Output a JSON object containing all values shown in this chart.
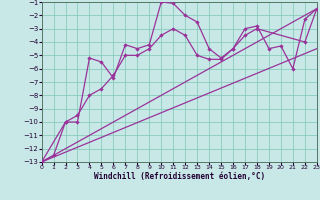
{
  "xlabel": "Windchill (Refroidissement éolien,°C)",
  "background_color": "#c8e8e8",
  "grid_color": "#88ccbb",
  "line_color": "#993399",
  "xlim": [
    0,
    23
  ],
  "ylim": [
    -13,
    -1
  ],
  "x_ticks": [
    0,
    1,
    2,
    3,
    4,
    5,
    6,
    7,
    8,
    9,
    10,
    11,
    12,
    13,
    14,
    15,
    16,
    17,
    18,
    19,
    20,
    21,
    22,
    23
  ],
  "y_ticks": [
    -13,
    -12,
    -11,
    -10,
    -9,
    -8,
    -7,
    -6,
    -5,
    -4,
    -3,
    -2,
    -1
  ],
  "series1_x": [
    0,
    1,
    2,
    3,
    4,
    5,
    6,
    7,
    8,
    9,
    10,
    11,
    12,
    13,
    14,
    15,
    16,
    17,
    18,
    19,
    20,
    21,
    22,
    23
  ],
  "series1_y": [
    -13,
    -12.5,
    -10,
    -10,
    -5.2,
    -5.5,
    -6.7,
    -4.2,
    -4.5,
    -4.2,
    -1.0,
    -1.1,
    -2.0,
    -2.5,
    -4.5,
    -5.2,
    -4.5,
    -3.0,
    -2.8,
    -4.5,
    -4.3,
    -6.0,
    -2.3,
    -1.5
  ],
  "series2_x": [
    0,
    2,
    3,
    4,
    5,
    6,
    7,
    8,
    9,
    10,
    11,
    12,
    13,
    14,
    15,
    16,
    17,
    18,
    22,
    23
  ],
  "series2_y": [
    -13,
    -10,
    -9.5,
    -8.0,
    -7.5,
    -6.5,
    -5.0,
    -5.0,
    -4.5,
    -3.5,
    -3.0,
    -3.5,
    -5.0,
    -5.3,
    -5.3,
    -4.5,
    -3.5,
    -3.0,
    -4.0,
    -1.5
  ],
  "ref_line1_x": [
    0,
    23
  ],
  "ref_line1_y": [
    -13,
    -1.5
  ],
  "ref_line2_x": [
    0,
    23
  ],
  "ref_line2_y": [
    -13,
    -4.5
  ]
}
